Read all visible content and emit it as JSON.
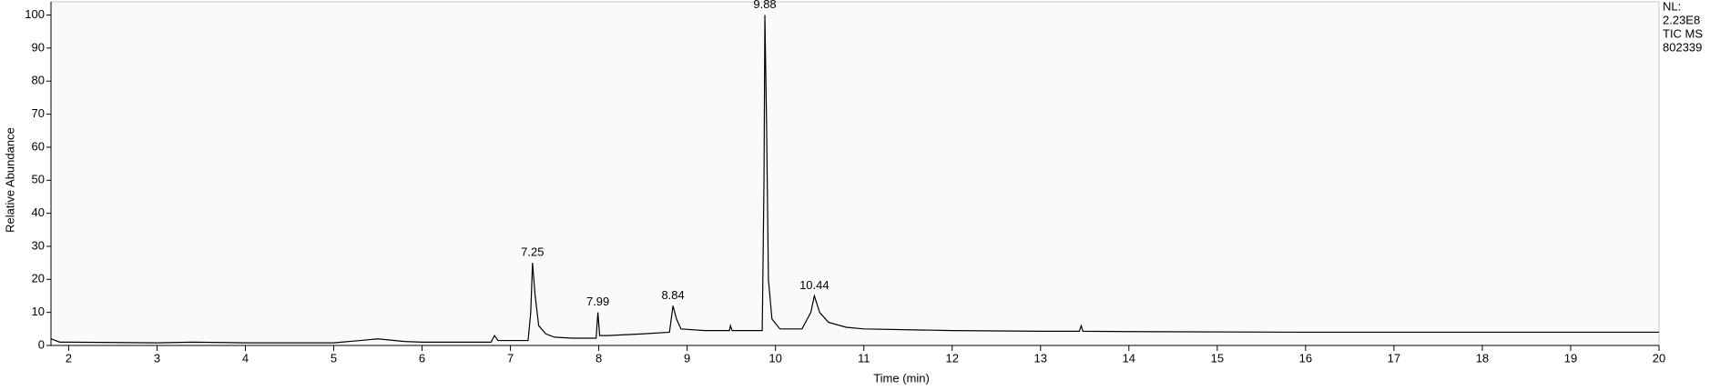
{
  "chart_data": {
    "type": "line",
    "xlabel": "Time (min)",
    "ylabel": "Relative Abundance",
    "info": [
      "NL:",
      "2.23E8",
      "TIC  MS",
      "802339"
    ],
    "xlim": [
      1.8,
      20
    ],
    "ylim": [
      0,
      104
    ],
    "xticks": [
      2,
      3,
      4,
      5,
      6,
      7,
      8,
      9,
      10,
      11,
      12,
      13,
      14,
      15,
      16,
      17,
      18,
      19,
      20
    ],
    "yticks": [
      0,
      10,
      20,
      30,
      40,
      50,
      60,
      70,
      80,
      90,
      100
    ],
    "series": [
      {
        "color": "#000000",
        "x": [
          1.8,
          1.85,
          1.9,
          2,
          3,
          3.4,
          4,
          5,
          5.3,
          5.5,
          5.8,
          6,
          6.5,
          6.78,
          6.82,
          6.86,
          7.0,
          7.2,
          7.23,
          7.25,
          7.28,
          7.32,
          7.4,
          7.5,
          7.7,
          7.97,
          7.99,
          8.01,
          8.1,
          8.5,
          8.8,
          8.84,
          8.88,
          8.93,
          9.2,
          9.48,
          9.49,
          9.51,
          9.85,
          9.87,
          9.88,
          9.9,
          9.92,
          9.96,
          10.05,
          10.3,
          10.4,
          10.44,
          10.5,
          10.6,
          10.8,
          11,
          12,
          13,
          13.44,
          13.46,
          13.48,
          14,
          16,
          18,
          20
        ],
        "values": [
          2,
          1.5,
          1,
          1,
          0.8,
          1,
          0.8,
          0.8,
          1.5,
          2,
          1.2,
          1,
          1,
          1,
          3,
          1.5,
          1.5,
          1.5,
          10,
          25,
          15,
          6,
          3.5,
          2.5,
          2.2,
          2.2,
          10,
          3,
          3,
          3.5,
          4,
          12,
          8,
          5,
          4.5,
          4.5,
          6,
          4.5,
          4.5,
          50,
          100,
          65,
          20,
          8,
          5,
          5,
          10,
          15,
          10,
          7,
          5.5,
          5,
          4.5,
          4.3,
          4.3,
          6,
          4.3,
          4.2,
          4,
          4,
          4
        ]
      }
    ],
    "annotations": [
      {
        "label": "7.25",
        "x": 7.25,
        "y": 25
      },
      {
        "label": "7.99",
        "x": 7.99,
        "y": 10
      },
      {
        "label": "8.84",
        "x": 8.84,
        "y": 12
      },
      {
        "label": "9.88",
        "x": 9.88,
        "y": 100
      },
      {
        "label": "10.44",
        "x": 10.44,
        "y": 15
      }
    ]
  }
}
